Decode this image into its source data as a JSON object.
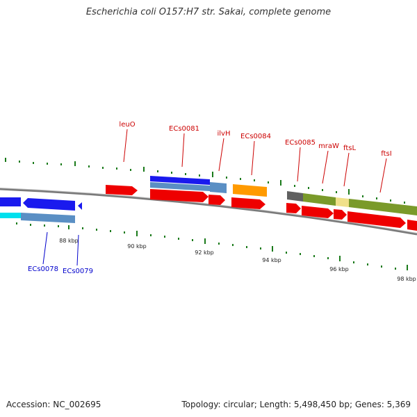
{
  "title": "Escherichia coli O157:H7 str. Sakai, complete genome",
  "footer": {
    "accession": "Accession: NC_002695",
    "summary": "Topology: circular; Length: 5,498,450 bp; Genes: 5,369"
  },
  "colors": {
    "forward_gene": "#ee0000",
    "reverse_gene": "#1a1aee",
    "reverse_cds": "#5a8fc4",
    "cyan_feature": "#00e0ee",
    "orange_feature": "#ff9a00",
    "olive_feature": "#7a9a2a",
    "grey_feature": "#606060",
    "pale_feature": "#f0e08a",
    "label_forward": "#cc0000",
    "label_reverse": "#0000cc",
    "tick": "#1a7a1a",
    "backbone": "#808080"
  },
  "scale": {
    "tick_labels": [
      "88 kbp",
      "90 kbp",
      "92 kbp",
      "94 kbp",
      "96 kbp",
      "98 kbp"
    ]
  },
  "gene_labels_forward": [
    "leuO",
    "ECs0081",
    "ilvH",
    "ECs0084",
    "ECs0085",
    "mraW",
    "ftsL",
    "ftsI"
  ],
  "gene_labels_reverse": [
    "ECs0078",
    "ECs0079"
  ]
}
